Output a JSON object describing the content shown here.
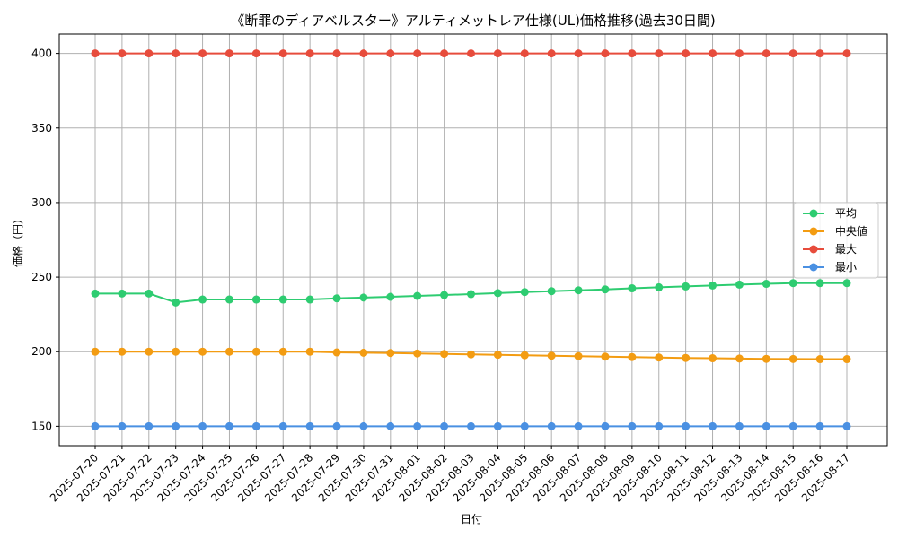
{
  "chart_data": {
    "type": "line",
    "title": "《断罪のディアベルスター》アルティメットレア仕様(UL)価格推移(過去30日間)",
    "xlabel": "日付",
    "ylabel": "価格（円）",
    "categories": [
      "2025-07-20",
      "2025-07-21",
      "2025-07-22",
      "2025-07-23",
      "2025-07-24",
      "2025-07-25",
      "2025-07-26",
      "2025-07-27",
      "2025-07-28",
      "2025-07-29",
      "2025-07-30",
      "2025-07-31",
      "2025-08-01",
      "2025-08-02",
      "2025-08-03",
      "2025-08-04",
      "2025-08-05",
      "2025-08-06",
      "2025-08-07",
      "2025-08-08",
      "2025-08-09",
      "2025-08-10",
      "2025-08-11",
      "2025-08-12",
      "2025-08-13",
      "2025-08-14",
      "2025-08-15",
      "2025-08-16",
      "2025-08-17"
    ],
    "ylim": [
      137,
      413
    ],
    "yticks": [
      150,
      200,
      250,
      300,
      350,
      400
    ],
    "grid": true,
    "legend_position": "center-right",
    "series": [
      {
        "name": "平均",
        "color": "#2ecc71",
        "values": [
          239,
          239,
          239,
          233,
          235,
          235,
          235,
          235,
          235,
          235.8,
          236.3,
          236.8,
          237.4,
          238,
          238.6,
          239.3,
          240,
          240.6,
          241.2,
          241.8,
          242.5,
          243.2,
          243.8,
          244.4,
          245,
          245.5,
          246,
          246,
          246
        ]
      },
      {
        "name": "中央値",
        "color": "#f39c12",
        "values": [
          200,
          200,
          200,
          200,
          200,
          200,
          200,
          200,
          200,
          199.5,
          199.3,
          199.1,
          198.8,
          198.5,
          198.2,
          197.9,
          197.6,
          197.3,
          197,
          196.7,
          196.4,
          196.1,
          195.8,
          195.6,
          195.4,
          195.2,
          195.1,
          195,
          195
        ]
      },
      {
        "name": "最大",
        "color": "#e74c3c",
        "values": [
          400,
          400,
          400,
          400,
          400,
          400,
          400,
          400,
          400,
          400,
          400,
          400,
          400,
          400,
          400,
          400,
          400,
          400,
          400,
          400,
          400,
          400,
          400,
          400,
          400,
          400,
          400,
          400,
          400
        ]
      },
      {
        "name": "最小",
        "color": "#4a90e2",
        "values": [
          150,
          150,
          150,
          150,
          150,
          150,
          150,
          150,
          150,
          150,
          150,
          150,
          150,
          150,
          150,
          150,
          150,
          150,
          150,
          150,
          150,
          150,
          150,
          150,
          150,
          150,
          150,
          150,
          150
        ]
      }
    ]
  }
}
